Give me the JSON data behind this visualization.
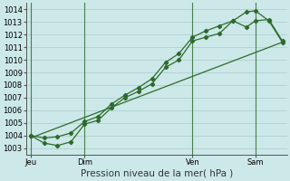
{
  "bg_color": "#cce8e8",
  "grid_color": "#aacccc",
  "line_color": "#2d6b2d",
  "ylim": [
    1002.5,
    1014.5
  ],
  "yticks": [
    1003,
    1004,
    1005,
    1006,
    1007,
    1008,
    1009,
    1010,
    1011,
    1012,
    1013,
    1014
  ],
  "xlabel": "Pression niveau de la mer( hPa )",
  "xlabel_fontsize": 7.5,
  "tick_fontsize": 6,
  "xtick_labels": [
    "Jeu",
    "Dim",
    "Ven",
    "Sam"
  ],
  "xtick_positions": [
    0,
    24,
    72,
    100
  ],
  "vline_positions": [
    0,
    24,
    72,
    100
  ],
  "line1_x": [
    0,
    6,
    12,
    18,
    24,
    30,
    36,
    42,
    48,
    54,
    60,
    66,
    72,
    78,
    84,
    90,
    96,
    100,
    106,
    112
  ],
  "line1_y": [
    1004.0,
    1003.4,
    1003.2,
    1003.5,
    1004.9,
    1005.2,
    1006.2,
    1007.0,
    1007.5,
    1008.1,
    1009.4,
    1010.0,
    1011.5,
    1011.8,
    1012.1,
    1013.1,
    1012.6,
    1013.1,
    1013.2,
    1011.5
  ],
  "line2_x": [
    0,
    6,
    12,
    18,
    24,
    30,
    36,
    42,
    48,
    54,
    60,
    66,
    72,
    78,
    84,
    90,
    96,
    100,
    106,
    112
  ],
  "line2_y": [
    1004.0,
    1003.8,
    1003.9,
    1004.2,
    1005.1,
    1005.5,
    1006.5,
    1007.2,
    1007.8,
    1008.5,
    1009.8,
    1010.5,
    1011.8,
    1012.3,
    1012.7,
    1013.1,
    1013.8,
    1013.9,
    1013.1,
    1011.4
  ],
  "line3_x": [
    0,
    112
  ],
  "line3_y": [
    1003.8,
    1011.4
  ],
  "xlim": [
    -2,
    114
  ],
  "figsize": [
    3.2,
    2.0
  ],
  "dpi": 100
}
